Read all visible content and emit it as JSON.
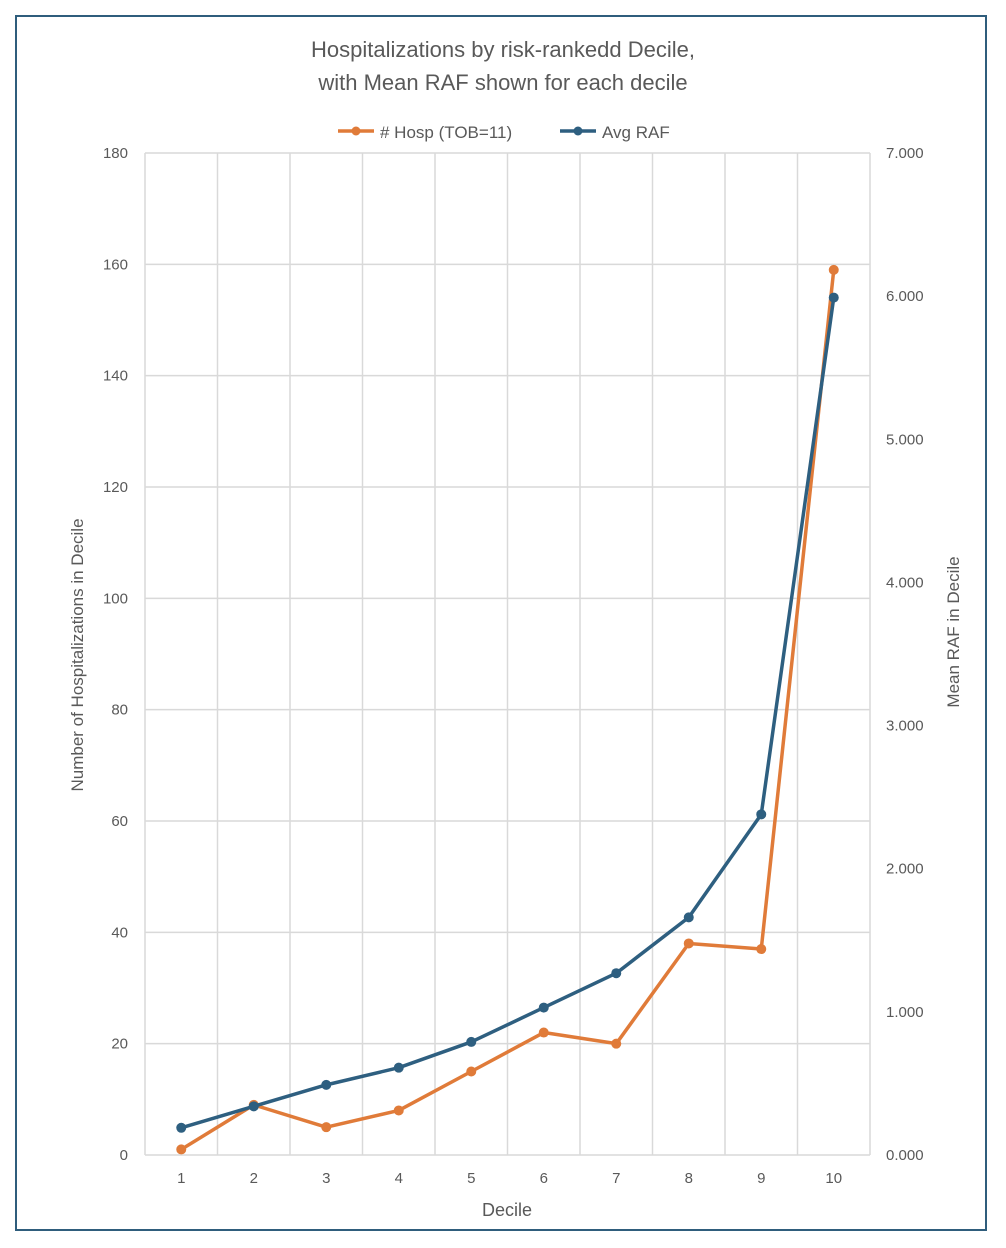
{
  "chart_data": {
    "type": "line",
    "title_lines": [
      "Hospitalizations by risk-rankedd Decile,",
      "with Mean RAF shown for each decile"
    ],
    "xlabel": "Decile",
    "ylabel": "Number of Hospitalizations in Decile",
    "y2label": "Mean RAF in Decile",
    "categories": [
      "1",
      "2",
      "3",
      "4",
      "5",
      "6",
      "7",
      "8",
      "9",
      "10"
    ],
    "ylim": [
      0,
      180
    ],
    "yticks": [
      "0",
      "20",
      "40",
      "60",
      "80",
      "100",
      "120",
      "140",
      "160",
      "180"
    ],
    "y2lim": [
      0,
      7
    ],
    "y2ticks": [
      "0.000",
      "1.000",
      "2.000",
      "3.000",
      "4.000",
      "5.000",
      "6.000",
      "7.000"
    ],
    "grid": true,
    "legend": "top",
    "series": [
      {
        "name": "# Hosp (TOB=11)",
        "axis": "left",
        "color": "#e07b39",
        "values": [
          1,
          9,
          5,
          8,
          15,
          22,
          20,
          38,
          37,
          159
        ]
      },
      {
        "name": "Avg RAF",
        "axis": "right",
        "color": "#2e5f80",
        "values": [
          0.19,
          0.34,
          0.49,
          0.61,
          0.79,
          1.03,
          1.27,
          1.66,
          2.38,
          5.99
        ]
      }
    ]
  }
}
